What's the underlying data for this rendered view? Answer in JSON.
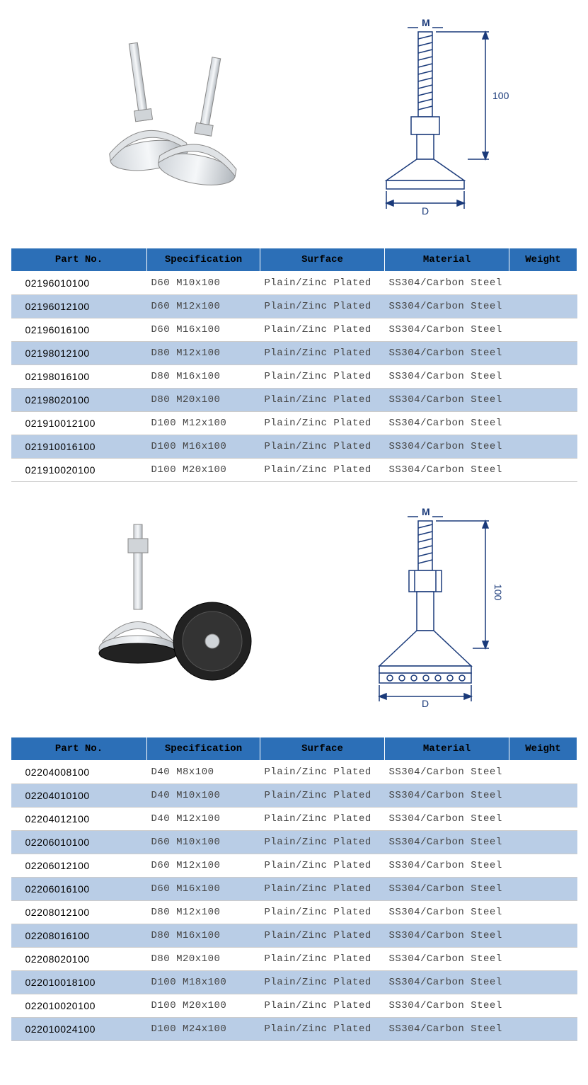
{
  "tables": {
    "columns": [
      "Part No.",
      "Specification",
      "Surface",
      "Material",
      "Weight"
    ],
    "header_bg": "#2c6fb7",
    "row_alt_bg": "#b9cde6",
    "text_color": "#444444"
  },
  "section1": {
    "diagram": {
      "label_M": "M",
      "label_D": "D",
      "label_100": "100"
    },
    "rows": [
      {
        "part": "02196010100",
        "spec": "D60 M10x100",
        "surf": "Plain/Zinc Plated",
        "mat": "SS304/Carbon Steel",
        "wgt": ""
      },
      {
        "part": "02196012100",
        "spec": "D60 M12x100",
        "surf": "Plain/Zinc Plated",
        "mat": "SS304/Carbon Steel",
        "wgt": ""
      },
      {
        "part": "02196016100",
        "spec": "D60 M16x100",
        "surf": "Plain/Zinc Plated",
        "mat": "SS304/Carbon Steel",
        "wgt": ""
      },
      {
        "part": "02198012100",
        "spec": "D80 M12x100",
        "surf": "Plain/Zinc Plated",
        "mat": "SS304/Carbon Steel",
        "wgt": ""
      },
      {
        "part": "02198016100",
        "spec": "D80 M16x100",
        "surf": "Plain/Zinc Plated",
        "mat": "SS304/Carbon Steel",
        "wgt": ""
      },
      {
        "part": "02198020100",
        "spec": "D80 M20x100",
        "surf": "Plain/Zinc Plated",
        "mat": "SS304/Carbon Steel",
        "wgt": ""
      },
      {
        "part": "021910012100",
        "spec": "D100 M12x100",
        "surf": "Plain/Zinc Plated",
        "mat": "SS304/Carbon Steel",
        "wgt": ""
      },
      {
        "part": "021910016100",
        "spec": "D100 M16x100",
        "surf": "Plain/Zinc Plated",
        "mat": "SS304/Carbon Steel",
        "wgt": ""
      },
      {
        "part": "021910020100",
        "spec": "D100 M20x100",
        "surf": "Plain/Zinc Plated",
        "mat": "SS304/Carbon Steel",
        "wgt": ""
      }
    ]
  },
  "section2": {
    "diagram": {
      "label_M": "M",
      "label_D": "D",
      "label_100": "100"
    },
    "rows": [
      {
        "part": "02204008100",
        "spec": "D40 M8x100",
        "surf": "Plain/Zinc Plated",
        "mat": "SS304/Carbon Steel",
        "wgt": ""
      },
      {
        "part": "02204010100",
        "spec": "D40 M10x100",
        "surf": "Plain/Zinc Plated",
        "mat": "SS304/Carbon Steel",
        "wgt": ""
      },
      {
        "part": "02204012100",
        "spec": "D40 M12x100",
        "surf": "Plain/Zinc Plated",
        "mat": "SS304/Carbon Steel",
        "wgt": ""
      },
      {
        "part": "02206010100",
        "spec": "D60 M10x100",
        "surf": "Plain/Zinc Plated",
        "mat": "SS304/Carbon Steel",
        "wgt": ""
      },
      {
        "part": "02206012100",
        "spec": "D60 M12x100",
        "surf": "Plain/Zinc Plated",
        "mat": "SS304/Carbon Steel",
        "wgt": ""
      },
      {
        "part": "02206016100",
        "spec": "D60 M16x100",
        "surf": "Plain/Zinc Plated",
        "mat": "SS304/Carbon Steel",
        "wgt": ""
      },
      {
        "part": "02208012100",
        "spec": "D80 M12x100",
        "surf": "Plain/Zinc Plated",
        "mat": "SS304/Carbon Steel",
        "wgt": ""
      },
      {
        "part": "02208016100",
        "spec": "D80 M16x100",
        "surf": "Plain/Zinc Plated",
        "mat": "SS304/Carbon Steel",
        "wgt": ""
      },
      {
        "part": "02208020100",
        "spec": "D80 M20x100",
        "surf": "Plain/Zinc Plated",
        "mat": "SS304/Carbon Steel",
        "wgt": ""
      },
      {
        "part": "022010018100",
        "spec": "D100 M18x100",
        "surf": "Plain/Zinc Plated",
        "mat": "SS304/Carbon Steel",
        "wgt": ""
      },
      {
        "part": "022010020100",
        "spec": "D100 M20x100",
        "surf": "Plain/Zinc Plated",
        "mat": "SS304/Carbon Steel",
        "wgt": ""
      },
      {
        "part": "022010024100",
        "spec": "D100 M24x100",
        "surf": "Plain/Zinc Plated",
        "mat": "SS304/Carbon Steel",
        "wgt": ""
      }
    ]
  }
}
